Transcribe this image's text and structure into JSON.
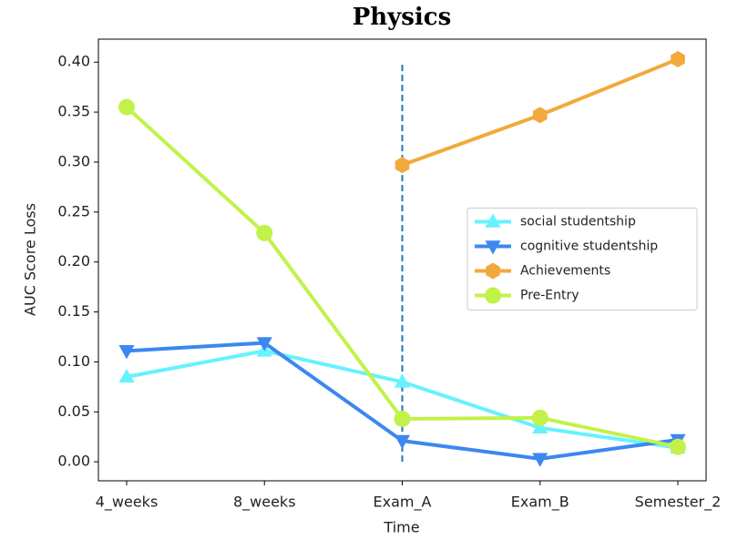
{
  "chart_data": {
    "type": "line",
    "title": "Physics",
    "x_label": "Time",
    "y_label": "AUC Score Loss",
    "categories": [
      "4_weeks",
      "8_weeks",
      "Exam_A",
      "Exam_B",
      "Semester_2"
    ],
    "series": [
      {
        "name": "social studentship",
        "color": "#66f2ff",
        "marker": "triangle-up",
        "values": [
          0.085,
          0.111,
          0.08,
          0.034,
          0.014
        ]
      },
      {
        "name": "cognitive studentship",
        "color": "#3d87f0",
        "marker": "triangle-down",
        "values": [
          0.111,
          0.119,
          0.021,
          0.003,
          0.022
        ]
      },
      {
        "name": "Achievements",
        "color": "#f2a93b",
        "marker": "hexagon",
        "values": [
          null,
          null,
          0.297,
          0.347,
          0.403
        ]
      },
      {
        "name": "Pre-Entry",
        "color": "#c2f24a",
        "marker": "circle",
        "values": [
          0.355,
          0.229,
          0.043,
          0.044,
          0.015
        ]
      }
    ],
    "vline": {
      "category": "Exam_A",
      "ymin": 0,
      "ymax": 0.4,
      "color": "#1f77b4",
      "style": "dashed"
    },
    "ylim": [
      -0.019,
      0.423
    ],
    "yticks": [
      {
        "value": 0,
        "label": "0.00"
      },
      {
        "value": 0.05,
        "label": "0.05"
      },
      {
        "value": 0.1,
        "label": "0.10"
      },
      {
        "value": 0.15,
        "label": "0.15"
      },
      {
        "value": 0.2,
        "label": "0.20"
      },
      {
        "value": 0.25,
        "label": "0.25"
      },
      {
        "value": 0.3,
        "label": "0.30"
      },
      {
        "value": 0.35,
        "label": "0.35"
      },
      {
        "value": 0.4,
        "label": "0.40"
      }
    ],
    "legend": "center right",
    "grid": false
  }
}
